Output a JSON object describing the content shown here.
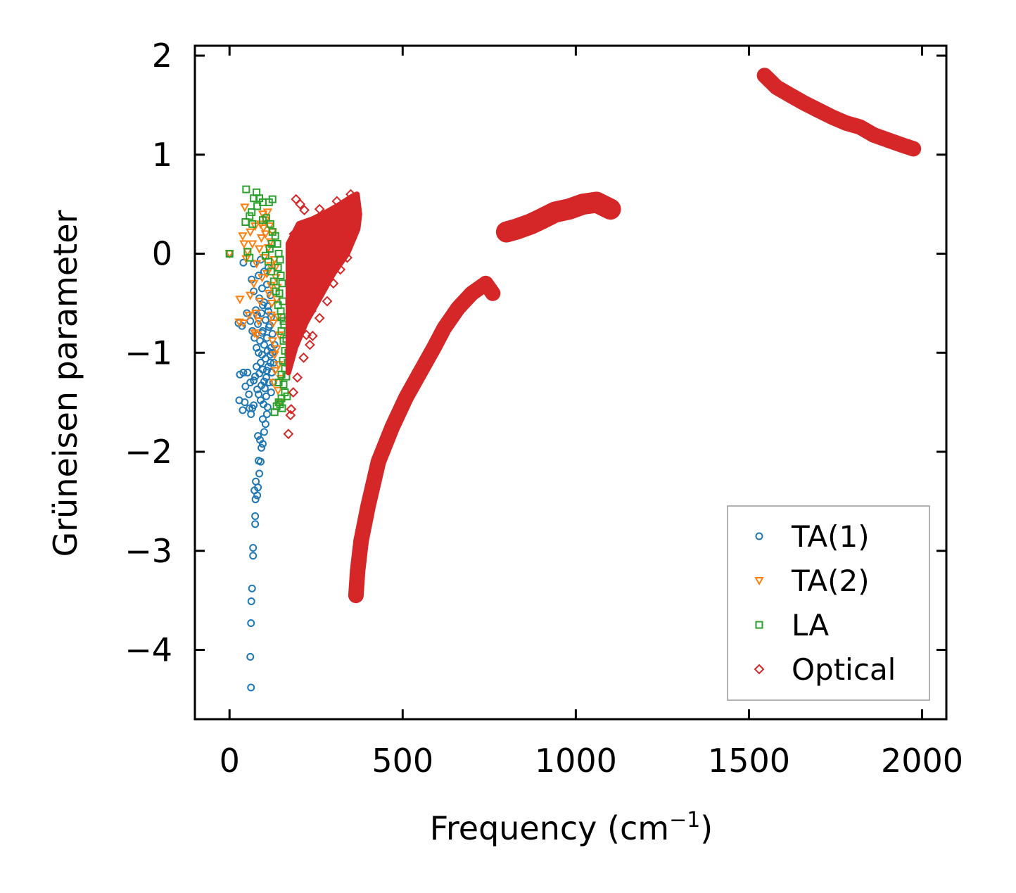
{
  "chart_data": {
    "type": "scatter",
    "title": "",
    "xlabel": "Frequency (cm",
    "xlabel_sup": "−1",
    "xlabel_end": ")",
    "ylabel": "Grüneisen parameter",
    "xlim": [
      -100,
      2070
    ],
    "ylim": [
      -4.7,
      2.1
    ],
    "xticks": [
      0,
      500,
      1000,
      1500,
      2000
    ],
    "xtick_labels": [
      "0",
      "500",
      "1000",
      "1500",
      "2000"
    ],
    "yticks": [
      2,
      1,
      0,
      -1,
      -2,
      -3,
      -4
    ],
    "ytick_labels": [
      "2",
      "1",
      "0",
      "−1",
      "−2",
      "−3",
      "−4"
    ],
    "grid": false,
    "legend_position": "lower-right",
    "colors": {
      "ta1": "#1f77b4",
      "ta2": "#ff7f0e",
      "la": "#2ca02c",
      "optical": "#d62728"
    },
    "series": [
      {
        "name": "TA(1)",
        "key": "ta1",
        "marker": "circle",
        "points": [
          [
            0,
            0
          ],
          [
            62,
            -4.38
          ],
          [
            60,
            -4.07
          ],
          [
            62,
            -3.73
          ],
          [
            63,
            -3.51
          ],
          [
            65,
            -3.38
          ],
          [
            68,
            -3.05
          ],
          [
            68,
            -2.97
          ],
          [
            74,
            -2.73
          ],
          [
            74,
            -2.65
          ],
          [
            75,
            -2.48
          ],
          [
            72,
            -2.39
          ],
          [
            80,
            -2.44
          ],
          [
            82,
            -2.36
          ],
          [
            86,
            -2.22
          ],
          [
            76,
            -2.3
          ],
          [
            84,
            -2.09
          ],
          [
            90,
            -2.1
          ],
          [
            92,
            -1.96
          ],
          [
            96,
            -1.92
          ],
          [
            88,
            -1.88
          ],
          [
            82,
            -1.84
          ],
          [
            100,
            -1.8
          ],
          [
            104,
            -1.72
          ],
          [
            96,
            -1.67
          ],
          [
            108,
            -1.62
          ],
          [
            110,
            -1.55
          ],
          [
            98,
            -1.52
          ],
          [
            90,
            -1.48
          ],
          [
            84,
            -1.42
          ],
          [
            80,
            -1.37
          ],
          [
            92,
            -1.33
          ],
          [
            100,
            -1.29
          ],
          [
            106,
            -1.25
          ],
          [
            86,
            -1.21
          ],
          [
            96,
            -1.17
          ],
          [
            112,
            -1.14
          ],
          [
            118,
            -1.1
          ],
          [
            104,
            -1.06
          ],
          [
            94,
            -1.02
          ],
          [
            110,
            -0.98
          ],
          [
            120,
            -0.95
          ],
          [
            100,
            -0.92
          ],
          [
            88,
            -0.88
          ],
          [
            108,
            -0.85
          ],
          [
            124,
            -0.81
          ],
          [
            96,
            -0.78
          ],
          [
            114,
            -0.74
          ],
          [
            82,
            -0.71
          ],
          [
            104,
            -0.67
          ],
          [
            120,
            -0.64
          ],
          [
            92,
            -0.6
          ],
          [
            76,
            -0.57
          ],
          [
            110,
            -0.53
          ],
          [
            100,
            -0.49
          ],
          [
            86,
            -0.45
          ],
          [
            118,
            -0.42
          ],
          [
            70,
            -0.38
          ],
          [
            94,
            -0.35
          ],
          [
            108,
            -0.31
          ],
          [
            64,
            -0.26
          ],
          [
            84,
            -0.22
          ],
          [
            100,
            -0.18
          ],
          [
            112,
            -0.14
          ],
          [
            70,
            -0.1
          ],
          [
            90,
            -0.06
          ],
          [
            40,
            -0.09
          ],
          [
            50,
            -0.6
          ],
          [
            26,
            -0.7
          ],
          [
            36,
            -0.73
          ],
          [
            40,
            -1.2
          ],
          [
            52,
            -1.2
          ],
          [
            30,
            -1.22
          ],
          [
            60,
            -1.3
          ],
          [
            46,
            -1.34
          ],
          [
            56,
            -1.42
          ],
          [
            28,
            -1.48
          ],
          [
            44,
            -1.5
          ],
          [
            66,
            -1.56
          ],
          [
            38,
            -1.58
          ],
          [
            70,
            -1.53
          ],
          [
            58,
            -1.56
          ],
          [
            70,
            -1.28
          ],
          [
            62,
            -1.62
          ],
          [
            78,
            -0.95
          ],
          [
            72,
            -0.85
          ],
          [
            66,
            -0.78
          ],
          [
            60,
            -0.68
          ],
          [
            120,
            -1.4
          ],
          [
            126,
            -1.3
          ],
          [
            122,
            -1.2
          ],
          [
            128,
            -1.1
          ],
          [
            124,
            -1.0
          ],
          [
            130,
            -0.92
          ],
          [
            116,
            -0.72
          ],
          [
            106,
            -1.44
          ],
          [
            102,
            -1.36
          ],
          [
            114,
            -1.3
          ],
          [
            108,
            -1.18
          ],
          [
            118,
            -1.02
          ],
          [
            84,
            -1.0
          ],
          [
            90,
            -1.1
          ],
          [
            78,
            -1.14
          ],
          [
            74,
            -1.24
          ],
          [
            94,
            -0.8
          ],
          [
            80,
            -0.62
          ],
          [
            112,
            -0.58
          ],
          [
            96,
            -0.52
          ]
        ]
      },
      {
        "name": "TA(2)",
        "key": "ta2",
        "marker": "triangle",
        "points": [
          [
            0,
            0
          ],
          [
            44,
            0.47
          ],
          [
            38,
            0.18
          ],
          [
            42,
            0.1
          ],
          [
            48,
            -0.05
          ],
          [
            30,
            -0.46
          ],
          [
            28,
            -0.69
          ],
          [
            40,
            -0.7
          ],
          [
            56,
            -0.62
          ],
          [
            60,
            -0.42
          ],
          [
            70,
            -0.3
          ],
          [
            78,
            -0.1
          ],
          [
            86,
            0.05
          ],
          [
            92,
            0.16
          ],
          [
            98,
            0.26
          ],
          [
            104,
            0.34
          ],
          [
            96,
            0.4
          ],
          [
            110,
            0.42
          ],
          [
            112,
            0.06
          ],
          [
            118,
            -0.12
          ],
          [
            120,
            -0.32
          ],
          [
            122,
            -0.5
          ],
          [
            126,
            -0.7
          ],
          [
            124,
            -0.88
          ],
          [
            130,
            -1.02
          ],
          [
            132,
            -1.18
          ],
          [
            128,
            -1.3
          ],
          [
            120,
            -0.62
          ],
          [
            114,
            -0.4
          ],
          [
            108,
            -0.2
          ],
          [
            100,
            -0.04
          ],
          [
            94,
            -0.24
          ],
          [
            88,
            -0.48
          ],
          [
            84,
            -0.68
          ],
          [
            80,
            -0.82
          ],
          [
            118,
            0.12
          ],
          [
            124,
            0.22
          ],
          [
            130,
            -0.06
          ],
          [
            134,
            -0.24
          ],
          [
            136,
            -0.46
          ],
          [
            140,
            -0.64
          ],
          [
            144,
            -0.82
          ],
          [
            136,
            -0.96
          ],
          [
            142,
            -1.12
          ],
          [
            148,
            -1.26
          ],
          [
            104,
            0.2
          ],
          [
            90,
            0.3
          ],
          [
            74,
            0.28
          ],
          [
            60,
            0.22
          ],
          [
            66,
            0.1
          ],
          [
            52,
            0.02
          ],
          [
            76,
            -0.6
          ],
          [
            72,
            -0.8
          ],
          [
            140,
            -1.38
          ],
          [
            146,
            -1.5
          ],
          [
            138,
            -0.34
          ],
          [
            132,
            -0.14
          ],
          [
            116,
            0.28
          ]
        ]
      },
      {
        "name": "LA",
        "key": "la",
        "marker": "square",
        "points": [
          [
            0,
            0
          ],
          [
            48,
            0.65
          ],
          [
            78,
            0.62
          ],
          [
            70,
            0.56
          ],
          [
            86,
            0.56
          ],
          [
            96,
            0.52
          ],
          [
            114,
            0.52
          ],
          [
            124,
            0.55
          ],
          [
            80,
            0.48
          ],
          [
            64,
            0.42
          ],
          [
            58,
            0.38
          ],
          [
            46,
            0.32
          ],
          [
            66,
            0.3
          ],
          [
            96,
            0.34
          ],
          [
            106,
            0.36
          ],
          [
            118,
            0.3
          ],
          [
            124,
            0.22
          ],
          [
            132,
            0.18
          ],
          [
            138,
            0.1
          ],
          [
            116,
            0.05
          ],
          [
            142,
            0.0
          ],
          [
            146,
            -0.06
          ],
          [
            52,
            0.02
          ],
          [
            58,
            -0.04
          ],
          [
            140,
            -0.14
          ],
          [
            148,
            -0.22
          ],
          [
            152,
            -0.3
          ],
          [
            144,
            -0.4
          ],
          [
            154,
            -0.48
          ],
          [
            148,
            -0.58
          ],
          [
            156,
            -0.68
          ],
          [
            150,
            -0.78
          ],
          [
            156,
            -0.88
          ],
          [
            160,
            -0.98
          ],
          [
            154,
            -1.08
          ],
          [
            160,
            -1.16
          ],
          [
            164,
            -1.24
          ],
          [
            156,
            -1.32
          ],
          [
            160,
            -1.4
          ],
          [
            150,
            -1.46
          ],
          [
            142,
            -1.5
          ],
          [
            136,
            -1.54
          ],
          [
            130,
            -1.6
          ],
          [
            146,
            -1.52
          ],
          [
            168,
            -1.1
          ],
          [
            170,
            -1.0
          ],
          [
            164,
            -0.86
          ],
          [
            158,
            -0.72
          ],
          [
            150,
            -0.64
          ],
          [
            140,
            -0.52
          ],
          [
            134,
            -0.38
          ],
          [
            128,
            -0.28
          ],
          [
            120,
            -0.18
          ],
          [
            112,
            -0.08
          ],
          [
            104,
            -0.02
          ],
          [
            150,
            -1.22
          ],
          [
            142,
            -1.3
          ],
          [
            166,
            -1.44
          ],
          [
            152,
            -1.56
          ],
          [
            122,
            0.1
          ]
        ]
      },
      {
        "name": "Optical",
        "key": "optical",
        "marker": "diamond",
        "band1_upper": [
          [
            170,
            0.1
          ],
          [
            200,
            0.3
          ],
          [
            240,
            0.35
          ],
          [
            280,
            0.42
          ],
          [
            320,
            0.5
          ],
          [
            355,
            0.58
          ],
          [
            368,
            0.6
          ],
          [
            375,
            0.4
          ],
          [
            370,
            0.25
          ],
          [
            340,
            0.0
          ],
          [
            300,
            -0.2
          ],
          [
            260,
            -0.45
          ],
          [
            220,
            -0.7
          ],
          [
            190,
            -0.95
          ],
          [
            170,
            -1.2
          ]
        ],
        "band1_scatter": [
          [
            178,
            -1.57
          ],
          [
            176,
            -1.63
          ],
          [
            170,
            -1.82
          ],
          [
            196,
            -1.25
          ],
          [
            214,
            -1.05
          ],
          [
            232,
            -0.92
          ],
          [
            240,
            -0.83
          ],
          [
            260,
            -0.65
          ],
          [
            282,
            -0.48
          ],
          [
            300,
            -0.3
          ],
          [
            320,
            -0.16
          ],
          [
            340,
            -0.04
          ],
          [
            192,
            0.55
          ],
          [
            204,
            0.5
          ],
          [
            216,
            0.44
          ],
          [
            260,
            0.45
          ],
          [
            310,
            0.53
          ],
          [
            350,
            0.6
          ],
          [
            186,
            0.2
          ],
          [
            200,
            -0.1
          ],
          [
            212,
            -0.4
          ],
          [
            176,
            -0.7
          ],
          [
            184,
            -1.4
          ],
          [
            222,
            -0.82
          ],
          [
            236,
            -0.58
          ]
        ],
        "band2": [
          [
            365,
            -3.45
          ],
          [
            370,
            -3.2
          ],
          [
            380,
            -2.9
          ],
          [
            400,
            -2.55
          ],
          [
            430,
            -2.1
          ],
          [
            470,
            -1.75
          ],
          [
            510,
            -1.45
          ],
          [
            550,
            -1.2
          ],
          [
            590,
            -0.95
          ],
          [
            620,
            -0.75
          ],
          [
            660,
            -0.55
          ],
          [
            700,
            -0.4
          ],
          [
            740,
            -0.3
          ],
          [
            760,
            -0.4
          ]
        ],
        "band3": [
          [
            800,
            0.22
          ],
          [
            830,
            0.25
          ],
          [
            870,
            0.3
          ],
          [
            900,
            0.35
          ],
          [
            940,
            0.42
          ],
          [
            980,
            0.45
          ],
          [
            1020,
            0.5
          ],
          [
            1060,
            0.52
          ],
          [
            1100,
            0.45
          ]
        ],
        "band4": [
          [
            1545,
            1.8
          ],
          [
            1580,
            1.68
          ],
          [
            1620,
            1.6
          ],
          [
            1660,
            1.52
          ],
          [
            1700,
            1.45
          ],
          [
            1740,
            1.38
          ],
          [
            1780,
            1.32
          ],
          [
            1820,
            1.28
          ],
          [
            1860,
            1.2
          ],
          [
            1900,
            1.15
          ],
          [
            1940,
            1.1
          ],
          [
            1975,
            1.06
          ]
        ]
      }
    ]
  }
}
